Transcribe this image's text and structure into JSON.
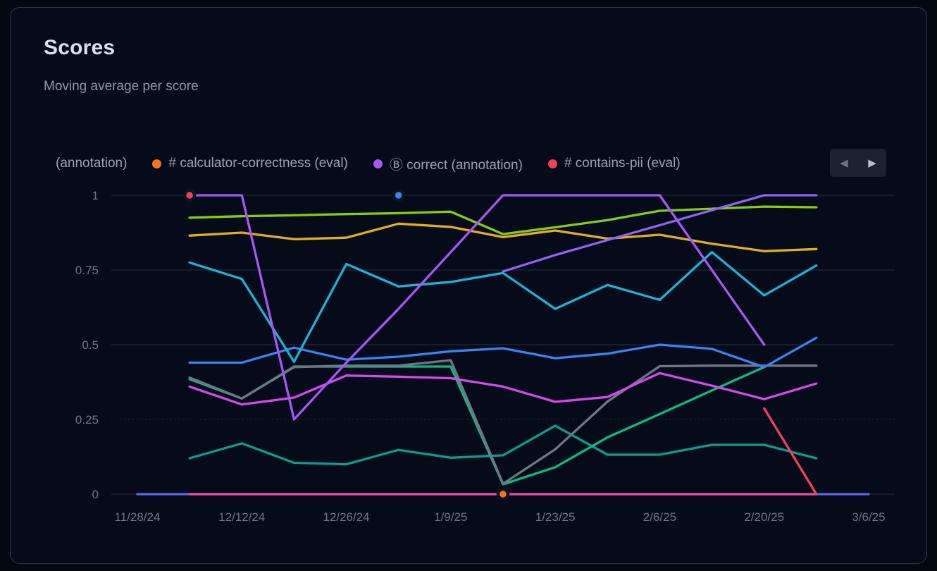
{
  "header": {
    "title": "Scores",
    "subtitle": "Moving average per score"
  },
  "legend": {
    "items": [
      {
        "label": "(annotation)",
        "color": null,
        "truncated": true
      },
      {
        "label": "# calculator-correctness (eval)",
        "color": "#f97316"
      },
      {
        "label": "Ⓑ correct (annotation)",
        "color": "#a855f7"
      },
      {
        "label": "# contains-pii (eval)",
        "color": "#f43f5e"
      }
    ],
    "pager": {
      "prev_icon": "◀",
      "next_icon": "▶"
    }
  },
  "chart_data": {
    "type": "line",
    "title": "Scores",
    "subtitle": "Moving average per score",
    "x_axis": {
      "tick_labels": [
        "11/28/24",
        "12/12/24",
        "12/26/24",
        "1/9/25",
        "1/23/25",
        "2/6/25",
        "2/20/25",
        "3/6/25"
      ],
      "note": "x values below are weekly indices 0-14 starting 11/28/24; axis ticks fall on even indices"
    },
    "y_axis": {
      "tick_labels": [
        "1",
        "0.75",
        "0.5",
        "0.25",
        "0"
      ],
      "tick_values": [
        1,
        0.75,
        0.5,
        0.25,
        0
      ],
      "range": [
        0,
        1
      ]
    },
    "grid": {
      "solid_at": [
        1,
        0.75,
        0.5,
        0
      ],
      "dashed_at": [
        0.25
      ]
    },
    "series": [
      {
        "id": "indigo",
        "color": "#5a64f0",
        "points": [
          [
            0,
            0
          ],
          [
            14,
            0
          ]
        ]
      },
      {
        "id": "pink",
        "color": "#ec4899",
        "points": [
          [
            1,
            0
          ],
          [
            13,
            0
          ]
        ]
      },
      {
        "id": "teal",
        "color": "#0f9b8e",
        "points": [
          [
            1,
            0.12
          ],
          [
            2,
            0.17
          ],
          [
            3,
            0.105
          ],
          [
            4,
            0.1
          ],
          [
            5,
            0.148
          ],
          [
            6,
            0.122
          ],
          [
            7,
            0.13
          ],
          [
            8,
            0.229
          ],
          [
            9,
            0.132
          ],
          [
            10,
            0.132
          ],
          [
            11,
            0.165
          ],
          [
            12,
            0.165
          ],
          [
            13,
            0.12
          ]
        ]
      },
      {
        "id": "emerald",
        "color": "#10b981",
        "points": [
          [
            1,
            0.385
          ],
          [
            2,
            0.32
          ],
          [
            3,
            0.427
          ],
          [
            4,
            0.427
          ],
          [
            5,
            0.427
          ],
          [
            6,
            0.427
          ],
          [
            7,
            0.033
          ],
          [
            8,
            0.09
          ],
          [
            9,
            0.19
          ],
          [
            10,
            0.268
          ],
          [
            11,
            0.347
          ],
          [
            12,
            0.425
          ]
        ]
      },
      {
        "id": "gray",
        "color": "#6f7787",
        "points": [
          [
            1,
            0.39
          ],
          [
            2,
            0.32
          ],
          [
            3,
            0.425
          ],
          [
            4,
            0.43
          ],
          [
            5,
            0.43
          ],
          [
            6,
            0.448
          ],
          [
            7,
            0.035
          ],
          [
            8,
            0.15
          ],
          [
            9,
            0.31
          ],
          [
            10,
            0.428
          ],
          [
            11,
            0.43
          ],
          [
            12,
            0.43
          ],
          [
            13,
            0.43
          ]
        ]
      },
      {
        "id": "magenta",
        "color": "#d946ef",
        "points": [
          [
            1,
            0.36
          ],
          [
            2,
            0.3
          ],
          [
            3,
            0.323
          ],
          [
            4,
            0.397
          ],
          [
            5,
            0.393
          ],
          [
            6,
            0.388
          ],
          [
            7,
            0.36
          ],
          [
            8,
            0.309
          ],
          [
            9,
            0.325
          ],
          [
            10,
            0.405
          ],
          [
            11,
            0.363
          ],
          [
            12,
            0.318
          ],
          [
            13,
            0.37
          ]
        ]
      },
      {
        "id": "blue",
        "color": "#3b82f6",
        "points": [
          [
            1,
            0.44
          ],
          [
            2,
            0.44
          ],
          [
            3,
            0.49
          ],
          [
            4,
            0.45
          ],
          [
            5,
            0.46
          ],
          [
            6,
            0.478
          ],
          [
            7,
            0.488
          ],
          [
            8,
            0.455
          ],
          [
            9,
            0.47
          ],
          [
            10,
            0.5
          ],
          [
            11,
            0.486
          ],
          [
            12,
            0.425
          ],
          [
            13,
            0.523
          ]
        ]
      },
      {
        "id": "cyan",
        "color": "#1fb2d5",
        "points": [
          [
            1,
            0.775
          ],
          [
            2,
            0.72
          ],
          [
            3,
            0.443
          ],
          [
            4,
            0.77
          ],
          [
            5,
            0.695
          ],
          [
            6,
            0.71
          ],
          [
            7,
            0.74
          ],
          [
            8,
            0.62
          ],
          [
            9,
            0.7
          ],
          [
            10,
            0.65
          ],
          [
            11,
            0.81
          ],
          [
            12,
            0.665
          ],
          [
            13,
            0.765
          ]
        ]
      },
      {
        "id": "amber",
        "color": "#e7ab1f",
        "points": [
          [
            1,
            0.865
          ],
          [
            2,
            0.875
          ],
          [
            3,
            0.853
          ],
          [
            4,
            0.858
          ],
          [
            5,
            0.905
          ],
          [
            6,
            0.894
          ],
          [
            7,
            0.86
          ],
          [
            8,
            0.882
          ],
          [
            9,
            0.855
          ],
          [
            10,
            0.868
          ],
          [
            11,
            0.838
          ],
          [
            12,
            0.813
          ],
          [
            13,
            0.82
          ]
        ]
      },
      {
        "id": "lime",
        "color": "#84cc16",
        "points": [
          [
            1,
            0.925
          ],
          [
            2,
            0.93
          ],
          [
            3,
            0.933
          ],
          [
            4,
            0.937
          ],
          [
            5,
            0.94
          ],
          [
            6,
            0.945
          ],
          [
            7,
            0.87
          ],
          [
            8,
            0.893
          ],
          [
            9,
            0.917
          ],
          [
            10,
            0.948
          ],
          [
            11,
            0.955
          ],
          [
            12,
            0.962
          ],
          [
            13,
            0.96
          ]
        ]
      },
      {
        "id": "violet",
        "color": "#8f63f3",
        "points": [
          [
            7,
            0.745
          ],
          [
            8,
            0.8
          ],
          [
            9,
            0.85
          ],
          [
            10,
            0.9
          ],
          [
            11,
            0.95
          ],
          [
            12,
            1
          ],
          [
            13,
            1
          ]
        ]
      },
      {
        "id": "purple",
        "color": "#a855f7",
        "legend_label": "Ⓑ correct (annotation)",
        "points": [
          [
            1,
            1
          ],
          [
            2,
            1
          ],
          [
            3,
            0.25
          ],
          [
            4,
            0.44
          ],
          [
            5,
            0.62
          ],
          [
            6,
            0.81
          ],
          [
            7,
            1
          ],
          [
            8,
            1
          ],
          [
            9,
            1
          ],
          [
            10,
            1
          ],
          [
            11,
            0.75
          ],
          [
            12,
            0.5
          ]
        ]
      },
      {
        "id": "red",
        "color": "#f43f5e",
        "legend_label": "# contains-pii (eval)",
        "points": [
          [
            12,
            0.287
          ],
          [
            13,
            0
          ]
        ]
      }
    ],
    "markers": [
      {
        "id": "contains-pii-point",
        "color": "#f43f5e",
        "at": [
          1,
          1
        ]
      },
      {
        "id": "blue-point",
        "color": "#3b82f6",
        "at": [
          5,
          1
        ]
      },
      {
        "id": "calculator-correctness-point",
        "color": "#f97316",
        "at": [
          7,
          0
        ]
      }
    ]
  }
}
